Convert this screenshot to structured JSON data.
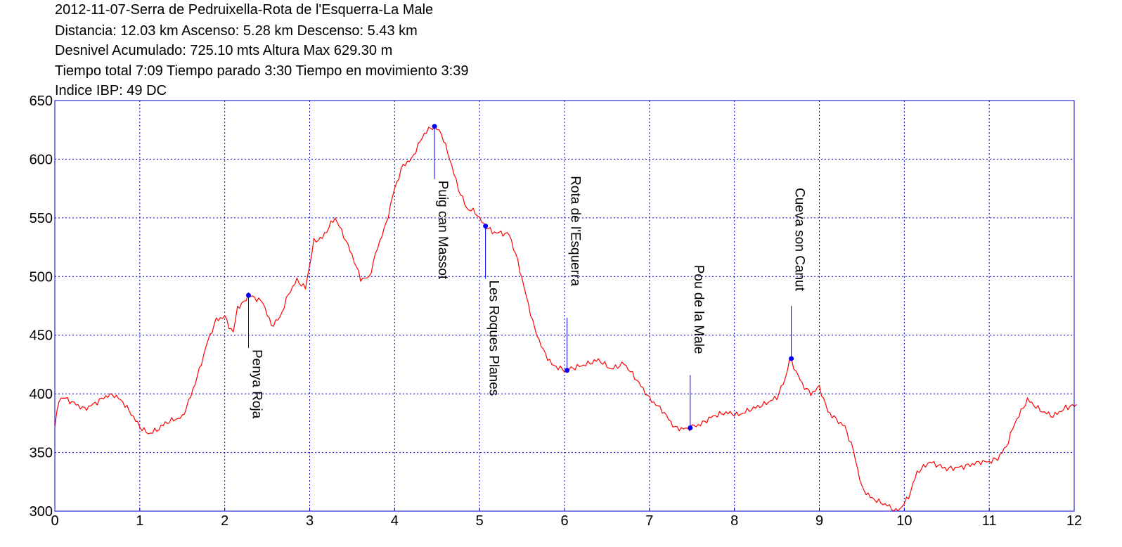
{
  "header": {
    "title": "2012-11-07-Serra de Pedruixella-Rota de l'Esquerra-La Male",
    "line2": "Distancia: 12.03 km Ascenso: 5.28 km Descenso: 5.43 km",
    "line3": "Desnivel Acumulado: 725.10 mts  Altura Max 629.30 m",
    "line4": "Tiempo total 7:09 Tiempo parado 3:30 Tiempo en movimiento 3:39",
    "line5": "Indice IBP: 49 DC"
  },
  "chart_data": {
    "type": "line",
    "xlim": [
      0,
      12.03
    ],
    "ylim": [
      300,
      650
    ],
    "x_ticks": [
      0,
      1,
      2,
      3,
      4,
      5,
      6,
      7,
      8,
      9,
      10,
      11,
      12
    ],
    "y_ticks": [
      300,
      350,
      400,
      450,
      500,
      550,
      600,
      650
    ],
    "grid": true,
    "colors": {
      "profile": "#ff0000",
      "frame": "#0000cc",
      "grid": "#0000cc",
      "marker": "#0000ff"
    },
    "series": [
      {
        "x": [
          0,
          0.05,
          0.1,
          0.2,
          0.35,
          0.5,
          0.6,
          0.7,
          0.8,
          0.9,
          1.0,
          1.1,
          1.2,
          1.3,
          1.4,
          1.5,
          1.6,
          1.7,
          1.8,
          1.9,
          2.0,
          2.05,
          2.1,
          2.15,
          2.2,
          2.28,
          2.35,
          2.45,
          2.55,
          2.65,
          2.75,
          2.85,
          2.95,
          3.0,
          3.05,
          3.15,
          3.25,
          3.3,
          3.4,
          3.5,
          3.6,
          3.7,
          3.8,
          3.9,
          4.0,
          4.1,
          4.2,
          4.3,
          4.35,
          4.4,
          4.47,
          4.55,
          4.65,
          4.75,
          4.85,
          4.95,
          5.05,
          5.15,
          5.25,
          5.35,
          5.45,
          5.55,
          5.65,
          5.75,
          5.85,
          6.0,
          6.1,
          6.25,
          6.4,
          6.55,
          6.7,
          6.85,
          7.0,
          7.15,
          7.3,
          7.45,
          7.5,
          7.6,
          7.75,
          7.9,
          8.05,
          8.2,
          8.35,
          8.5,
          8.6,
          8.65,
          8.7,
          8.8,
          8.9,
          9.0,
          9.1,
          9.2,
          9.3,
          9.4,
          9.5,
          9.6,
          9.7,
          9.8,
          9.9,
          9.95,
          10.05,
          10.15,
          10.3,
          10.5,
          10.7,
          10.9,
          11.0,
          11.1,
          11.2,
          11.3,
          11.45,
          11.6,
          11.75,
          11.9,
          12.03
        ],
        "y": [
          372,
          395,
          397,
          393,
          387,
          393,
          398,
          399,
          393,
          383,
          372,
          366,
          369,
          375,
          378,
          380,
          398,
          420,
          445,
          463,
          466,
          458,
          452,
          474,
          476,
          484,
          482,
          478,
          458,
          465,
          485,
          497,
          490,
          510,
          530,
          533,
          545,
          550,
          535,
          518,
          498,
          499,
          525,
          545,
          575,
          595,
          600,
          615,
          622,
          625,
          628,
          622,
          600,
          575,
          558,
          555,
          544,
          538,
          537,
          536,
          513,
          483,
          455,
          437,
          425,
          420,
          422,
          425,
          429,
          421,
          426,
          412,
          396,
          386,
          371,
          370,
          372,
          374,
          381,
          384,
          382,
          387,
          391,
          397,
          413,
          430,
          423,
          408,
          400,
          406,
          385,
          378,
          372,
          352,
          320,
          312,
          308,
          305,
          300,
          302,
          312,
          333,
          342,
          336,
          338,
          342,
          342,
          345,
          355,
          375,
          395,
          386,
          381,
          388,
          391
        ]
      }
    ],
    "markers": [
      {
        "label": "Penya Roja",
        "x": 2.28,
        "y": 484
      },
      {
        "label": "Puig can Massot",
        "x": 4.47,
        "y": 628
      },
      {
        "label": "Les Roques Planes",
        "x": 5.07,
        "y": 543
      },
      {
        "label": "Rota de l'Esquerra",
        "x": 6.03,
        "y": 420
      },
      {
        "label": "Pou de la Male",
        "x": 7.48,
        "y": 371
      },
      {
        "label": "Cueva son Canut",
        "x": 8.67,
        "y": 430
      }
    ]
  }
}
